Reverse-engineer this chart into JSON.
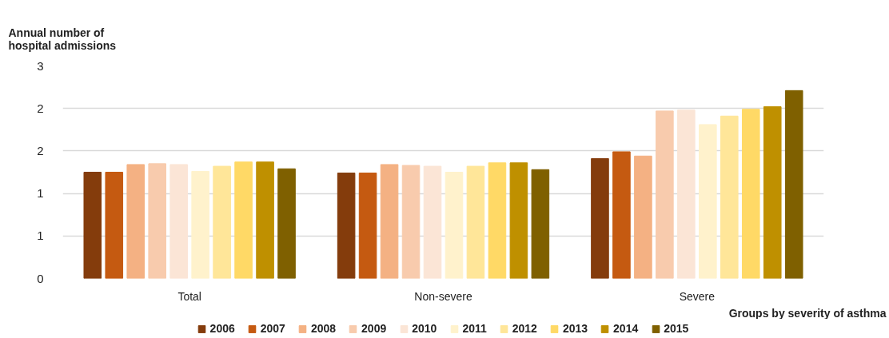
{
  "chart_data": {
    "type": "bar",
    "ylabel": "Annual number of hospital admissions",
    "xlabel": "Groups by severity of asthma",
    "categories": [
      "Total",
      "Non-severe",
      "Severe"
    ],
    "series": [
      {
        "name": "2006",
        "color": "#843c0c",
        "values": [
          1.25,
          1.24,
          1.41
        ]
      },
      {
        "name": "2007",
        "color": "#c55a11",
        "values": [
          1.25,
          1.24,
          1.49
        ]
      },
      {
        "name": "2008",
        "color": "#f4b183",
        "values": [
          1.34,
          1.34,
          1.44
        ]
      },
      {
        "name": "2009",
        "color": "#f8cbad",
        "values": [
          1.35,
          1.33,
          1.97
        ]
      },
      {
        "name": "2010",
        "color": "#fbe5d6",
        "values": [
          1.34,
          1.32,
          1.98
        ]
      },
      {
        "name": "2011",
        "color": "#fff2cc",
        "values": [
          1.26,
          1.25,
          1.81
        ]
      },
      {
        "name": "2012",
        "color": "#ffe699",
        "values": [
          1.32,
          1.32,
          1.91
        ]
      },
      {
        "name": "2013",
        "color": "#ffd966",
        "values": [
          1.37,
          1.36,
          1.99
        ]
      },
      {
        "name": "2014",
        "color": "#bf9000",
        "values": [
          1.37,
          1.36,
          2.02
        ]
      },
      {
        "name": "2015",
        "color": "#7f6000",
        "values": [
          1.29,
          1.28,
          2.21
        ]
      }
    ],
    "ylim": [
      0,
      2.5
    ],
    "yticks": [
      0,
      {
        "value": 0.5,
        "label": "1"
      },
      1,
      {
        "value": 1.5,
        "label": "2"
      },
      2,
      {
        "value": 2.5,
        "label": "3"
      }
    ],
    "grid": "y",
    "legend": "bottom"
  }
}
